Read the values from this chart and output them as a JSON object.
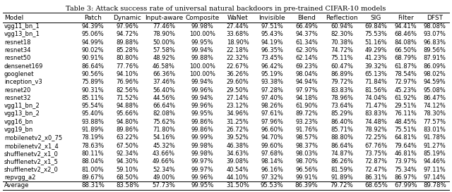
{
  "title": "Table 3: Attack success rate of universal natural backdoors in pre-trained CIFAR-10 models",
  "columns": [
    "Model",
    "Patch",
    "Dynamic",
    "Input-aware",
    "Composite",
    "WaNet",
    "Invisible",
    "Blend",
    "Reflection",
    "SIG",
    "Filter",
    "DFST"
  ],
  "rows": [
    [
      "vgg11_bn_1",
      "94.39%",
      "97.96%",
      "77.46%",
      "99.98%",
      "27.44%",
      "97.51%",
      "66.49%",
      "60.94%",
      "69.84%",
      "94.41%",
      "98.08%"
    ],
    [
      "vgg13_bn_1",
      "95.06%",
      "94.72%",
      "78.90%",
      "100.00%",
      "33.68%",
      "95.43%",
      "94.37%",
      "82.30%",
      "75.53%",
      "68.46%",
      "93.07%"
    ],
    [
      "resnet18",
      "94.99%",
      "89.88%",
      "50.00%",
      "99.95%",
      "18.90%",
      "94.19%",
      "61.34%",
      "70.38%",
      "51.16%",
      "84.08%",
      "96.83%"
    ],
    [
      "resnet34",
      "90.02%",
      "85.28%",
      "57.58%",
      "99.94%",
      "22.18%",
      "96.35%",
      "62.30%",
      "74.72%",
      "49.29%",
      "66.50%",
      "89.56%"
    ],
    [
      "resnet50",
      "90.91%",
      "80.80%",
      "48.92%",
      "99.88%",
      "22.32%",
      "73.45%",
      "62.14%",
      "75.11%",
      "41.23%",
      "68.79%",
      "87.91%"
    ],
    [
      "densenet169",
      "86.64%",
      "77.76%",
      "46.58%",
      "100.00%",
      "22.67%",
      "96.42%",
      "69.23%",
      "60.47%",
      "39.32%",
      "61.87%",
      "86.09%"
    ],
    [
      "googlenet",
      "90.56%",
      "94.10%",
      "66.36%",
      "100.00%",
      "36.26%",
      "95.19%",
      "98.04%",
      "86.89%",
      "65.13%",
      "78.54%",
      "98.02%"
    ],
    [
      "inception_v3",
      "75.89%",
      "76.96%",
      "37.46%",
      "99.94%",
      "29.60%",
      "93.38%",
      "94.94%",
      "79.72%",
      "71.84%",
      "72.97%",
      "94.59%"
    ],
    [
      "resnet20",
      "90.31%",
      "82.56%",
      "56.40%",
      "99.96%",
      "29.50%",
      "97.28%",
      "97.97%",
      "83.83%",
      "81.56%",
      "45.23%",
      "95.08%"
    ],
    [
      "resnet32",
      "85.11%",
      "71.52%",
      "44.56%",
      "99.94%",
      "27.14%",
      "97.40%",
      "94.18%",
      "78.96%",
      "74.04%",
      "61.92%",
      "86.47%"
    ],
    [
      "vgg11_bn_2",
      "95.54%",
      "94.88%",
      "66.64%",
      "99.96%",
      "23.12%",
      "98.26%",
      "61.90%",
      "73.64%",
      "71.47%",
      "29.51%",
      "74.12%"
    ],
    [
      "vgg13_bn_2",
      "95.40%",
      "95.66%",
      "82.08%",
      "99.95%",
      "34.96%",
      "97.61%",
      "89.72%",
      "85.29%",
      "83.83%",
      "76.11%",
      "78.30%"
    ],
    [
      "vgg16_bn",
      "93.88%",
      "94.80%",
      "75.62%",
      "99.86%",
      "31.25%",
      "97.96%",
      "93.23%",
      "86.40%",
      "74.48%",
      "48.45%",
      "77.57%"
    ],
    [
      "vgg19_bn",
      "91.89%",
      "89.86%",
      "71.80%",
      "99.86%",
      "26.72%",
      "96.60%",
      "91.76%",
      "85.71%",
      "78.92%",
      "75.51%",
      "83.01%"
    ],
    [
      "mobilenetv2_x0_75",
      "78.19%",
      "63.22%",
      "54.16%",
      "99.99%",
      "39.52%",
      "94.70%",
      "98.57%",
      "88.80%",
      "72.25%",
      "64.81%",
      "91.78%"
    ],
    [
      "mobilenetv2_x1_4",
      "78.63%",
      "67.50%",
      "45.32%",
      "99.98%",
      "46.38%",
      "99.60%",
      "98.37%",
      "86.64%",
      "67.76%",
      "79.64%",
      "91.27%"
    ],
    [
      "shufflenetv2_x1_0",
      "80.11%",
      "92.34%",
      "43.66%",
      "99.98%",
      "34.63%",
      "97.68%",
      "98.03%",
      "74.87%",
      "73.75%",
      "46.81%",
      "85.19%"
    ],
    [
      "shufflenetv2_x1_5",
      "88.04%",
      "94.30%",
      "49.66%",
      "99.97%",
      "39.08%",
      "98.14%",
      "98.70%",
      "86.26%",
      "72.87%",
      "73.97%",
      "94.46%"
    ],
    [
      "shufflenetv2_x2_0",
      "81.00%",
      "59.10%",
      "52.34%",
      "99.97%",
      "40.54%",
      "96.16%",
      "96.56%",
      "81.59%",
      "72.47%",
      "75.34%",
      "97.11%"
    ],
    [
      "repvgg_a2",
      "89.67%",
      "68.50%",
      "49.00%",
      "99.96%",
      "44.10%",
      "97.32%",
      "99.91%",
      "91.89%",
      "86.31%",
      "86.97%",
      "97.14%"
    ]
  ],
  "average": [
    "Average",
    "88.31%",
    "83.58%",
    "57.73%",
    "99.95%",
    "31.50%",
    "95.53%",
    "86.39%",
    "79.72%",
    "68.65%",
    "67.99%",
    "89.78%"
  ],
  "title_fontsize": 7.0,
  "header_fontsize": 6.5,
  "data_fontsize": 6.0,
  "avg_fontsize": 6.2
}
